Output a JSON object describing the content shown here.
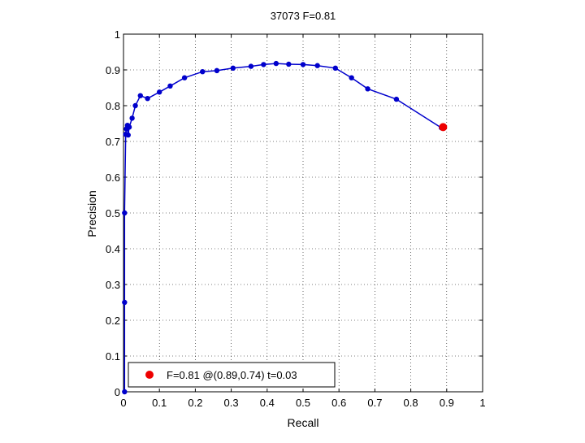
{
  "chart_data": {
    "type": "line",
    "title": "37073 F=0.81",
    "xlabel": "Recall",
    "ylabel": "Precision",
    "xlim": [
      0,
      1
    ],
    "ylim": [
      0,
      1
    ],
    "xticks": [
      0,
      0.1,
      0.2,
      0.3,
      0.4,
      0.5,
      0.6,
      0.7,
      0.8,
      0.9,
      1
    ],
    "yticks": [
      0,
      0.1,
      0.2,
      0.3,
      0.4,
      0.5,
      0.6,
      0.7,
      0.8,
      0.9,
      1
    ],
    "xtick_labels": [
      "0",
      "0.1",
      "0.2",
      "0.3",
      "0.4",
      "0.5",
      "0.6",
      "0.7",
      "0.8",
      "0.9",
      "1"
    ],
    "ytick_labels": [
      "0",
      "0.1",
      "0.2",
      "0.3",
      "0.4",
      "0.5",
      "0.6",
      "0.7",
      "0.8",
      "0.9",
      "1"
    ],
    "grid": true,
    "legend_position": "bottom-left",
    "series": [
      {
        "color": "#0000cc",
        "marker": "dot",
        "x": [
          0.003,
          0.003,
          0.003,
          0.006,
          0.008,
          0.011,
          0.013,
          0.016,
          0.024,
          0.033,
          0.047,
          0.067,
          0.1,
          0.13,
          0.17,
          0.22,
          0.26,
          0.305,
          0.355,
          0.39,
          0.425,
          0.46,
          0.5,
          0.54,
          0.59,
          0.635,
          0.68,
          0.76,
          0.885
        ],
        "y": [
          0.0,
          0.25,
          0.5,
          0.72,
          0.735,
          0.745,
          0.718,
          0.74,
          0.765,
          0.8,
          0.828,
          0.82,
          0.838,
          0.855,
          0.878,
          0.895,
          0.898,
          0.905,
          0.91,
          0.915,
          0.918,
          0.916,
          0.915,
          0.912,
          0.905,
          0.878,
          0.847,
          0.818,
          0.738
        ]
      }
    ],
    "best_point": {
      "x": 0.89,
      "y": 0.74,
      "color": "#ee0000"
    },
    "legend": {
      "entries": [
        "F=0.81 @(0.89,0.74) t=0.03"
      ]
    }
  }
}
